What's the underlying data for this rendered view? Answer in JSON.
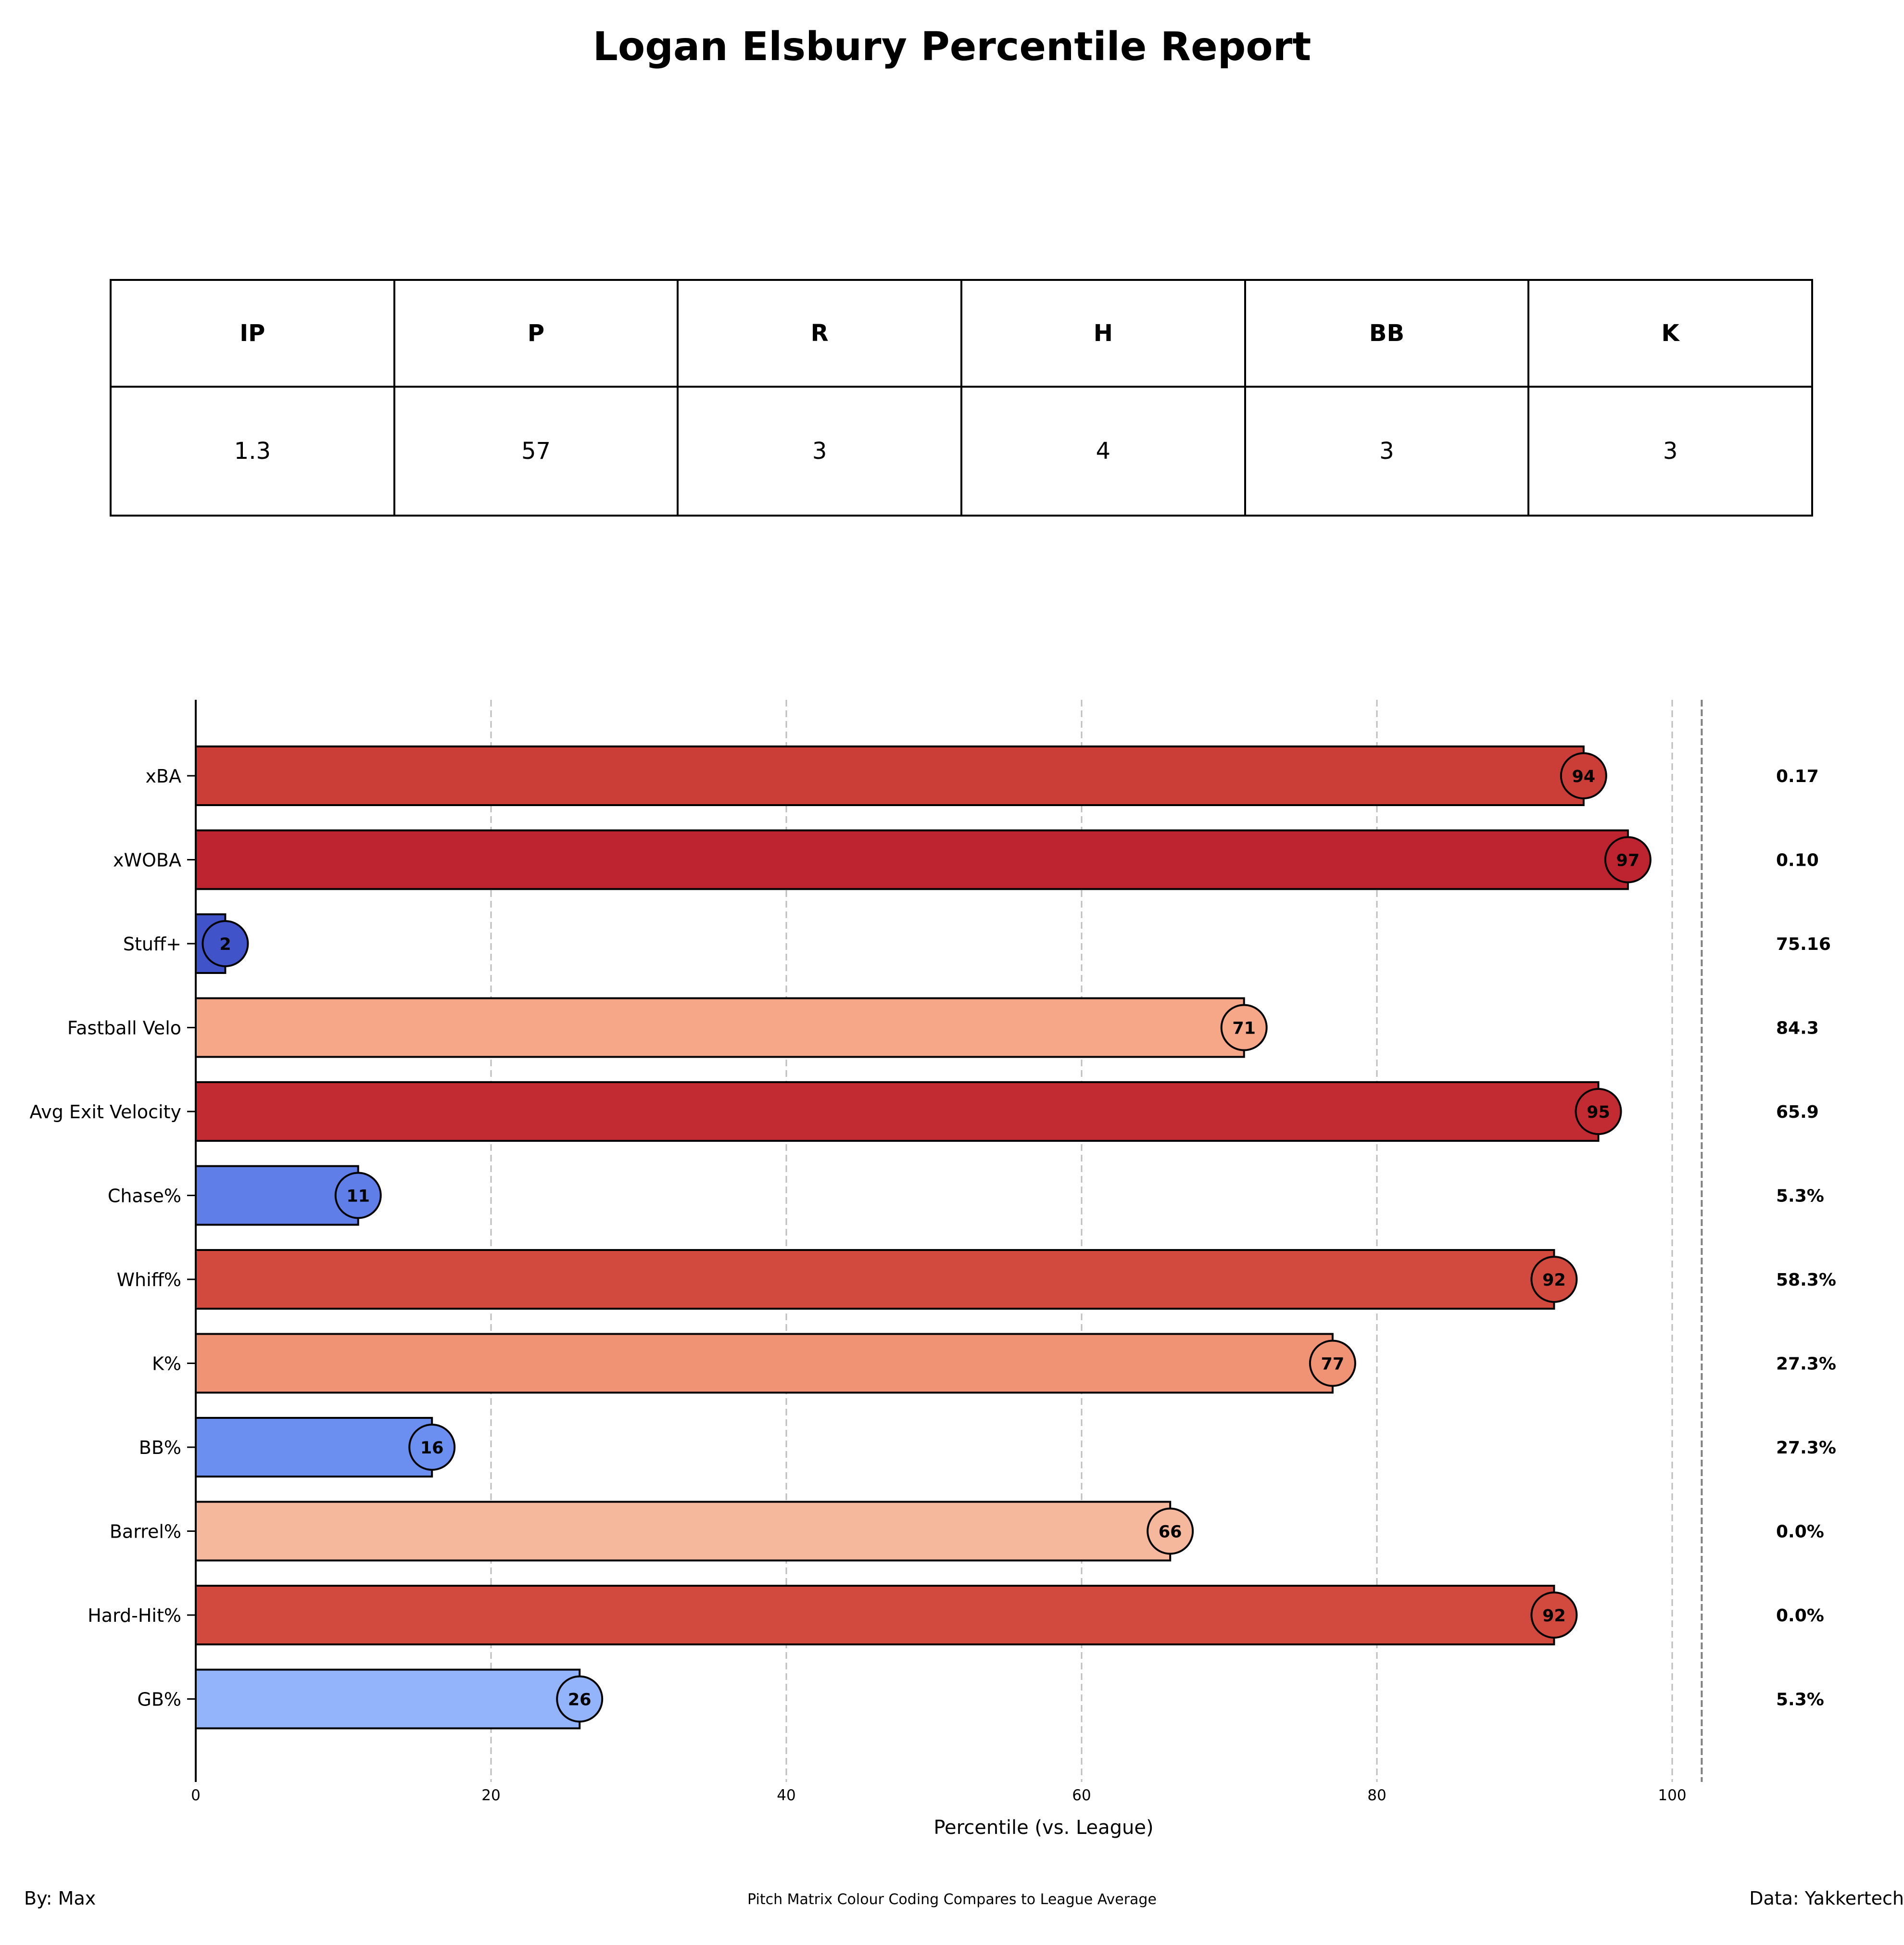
{
  "title": "Logan Elsbury Percentile Report",
  "stats_table": {
    "headers": [
      "IP",
      "P",
      "R",
      "H",
      "BB",
      "K"
    ],
    "values": [
      "1.3",
      "57",
      "3",
      "4",
      "3",
      "3"
    ]
  },
  "chart_data": {
    "type": "bar",
    "orientation": "horizontal",
    "xlabel": "Percentile (vs. League)",
    "ylabel": "",
    "xlim": [
      0,
      102
    ],
    "xticks": [
      0,
      20,
      40,
      60,
      80,
      100
    ],
    "grid": "vertical dashed",
    "categories": [
      "xBA",
      "xWOBA",
      "Stuff+",
      "Fastball Velo",
      "Avg Exit Velocity",
      "Chase%",
      "Whiff%",
      "K%",
      "BB%",
      "Barrel%",
      "Hard-Hit%",
      "GB%"
    ],
    "values": [
      94,
      97,
      2,
      71,
      95,
      11,
      92,
      77,
      16,
      66,
      92,
      26
    ],
    "raw_values": [
      "0.17",
      "0.10",
      "75.16",
      "84.3",
      "65.9",
      "5.3%",
      "58.3%",
      "27.3%",
      "27.3%",
      "0.0%",
      "0.0%",
      "5.3%"
    ],
    "colors": [
      "#cb3e38",
      "#be2430",
      "#4153c9",
      "#f5a788",
      "#c32b32",
      "#5f7ee8",
      "#d14a3d",
      "#f09375",
      "#6b8ff0",
      "#f5b89c",
      "#d14a3d",
      "#93b3fb"
    ]
  },
  "footer": {
    "left": "By: Max",
    "center": "Pitch Matrix Colour Coding Compares to League Average",
    "right": "Data: Yakkertech"
  }
}
